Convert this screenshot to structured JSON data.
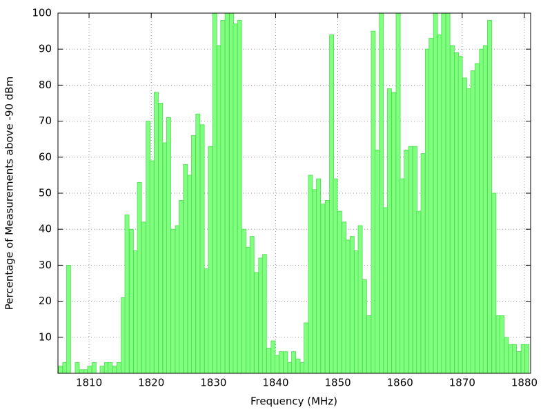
{
  "chart_data": {
    "type": "bar",
    "x_label": "Frequency (MHz)",
    "y_label": "Percentage of Measurements above -90 dBm",
    "x": [
      1805.4,
      1806.1,
      1806.7,
      1807.4,
      1808.1,
      1808.8,
      1809.4,
      1810.1,
      1810.8,
      1811.4,
      1812.1,
      1812.8,
      1813.4,
      1814.1,
      1814.8,
      1815.5,
      1816.1,
      1816.8,
      1817.5,
      1818.1,
      1818.8,
      1819.5,
      1820.1,
      1820.8,
      1821.5,
      1822.2,
      1822.8,
      1823.5,
      1824.2,
      1824.8,
      1825.5,
      1826.2,
      1826.8,
      1827.5,
      1828.2,
      1828.9,
      1829.5,
      1830.2,
      1830.9,
      1831.5,
      1832.2,
      1832.9,
      1833.5,
      1834.2,
      1834.9,
      1835.6,
      1836.2,
      1836.9,
      1837.6,
      1838.2,
      1838.9,
      1839.6,
      1840.2,
      1840.9,
      1841.6,
      1842.3,
      1842.9,
      1843.6,
      1844.3,
      1844.9,
      1845.6,
      1846.3,
      1846.9,
      1847.6,
      1848.3,
      1849.0,
      1849.6,
      1850.3,
      1851.0,
      1851.6,
      1852.3,
      1853.0,
      1853.6,
      1854.3,
      1855.0,
      1855.7,
      1856.3,
      1857.0,
      1857.7,
      1858.3,
      1859.0,
      1859.7,
      1860.3,
      1861.0,
      1861.7,
      1862.4,
      1863.0,
      1863.7,
      1864.4,
      1865.0,
      1865.7,
      1866.4,
      1867.0,
      1867.7,
      1868.4,
      1869.1,
      1869.7,
      1870.4,
      1871.1,
      1871.7,
      1872.4,
      1873.1,
      1873.7,
      1874.4,
      1875.1,
      1875.8,
      1876.4,
      1877.1,
      1877.8,
      1878.4,
      1879.1,
      1879.8,
      1880.4
    ],
    "values": [
      2,
      3,
      30,
      0,
      3,
      1,
      1,
      2,
      3,
      0,
      2,
      3,
      3,
      2,
      3,
      21,
      44,
      40,
      34,
      53,
      42,
      70,
      59,
      78,
      75,
      64,
      71,
      40,
      41,
      48,
      58,
      55,
      66,
      72,
      69,
      29,
      63,
      100,
      91,
      98,
      100,
      100,
      97,
      98,
      40,
      35,
      38,
      28,
      32,
      33,
      7,
      9,
      5,
      6,
      6,
      3,
      6,
      4,
      3,
      14,
      55,
      51,
      54,
      47,
      48,
      94,
      54,
      45,
      42,
      37,
      38,
      34,
      41,
      26,
      16,
      95,
      62,
      100,
      46,
      79,
      78,
      100,
      54,
      62,
      63,
      63,
      45,
      61,
      90,
      93,
      100,
      94,
      100,
      100,
      91,
      89,
      88,
      82,
      79,
      84,
      86,
      90,
      91,
      98,
      50,
      16,
      16,
      10,
      8,
      8,
      6,
      8,
      8
    ],
    "color": "#80ff80",
    "edge_color": "#4cdd4c",
    "xlim": [
      1805,
      1881
    ],
    "ylim": [
      0,
      100
    ],
    "xticks": [
      1810,
      1820,
      1830,
      1840,
      1850,
      1860,
      1870,
      1880
    ],
    "yticks": [
      10,
      20,
      30,
      40,
      50,
      60,
      70,
      80,
      90,
      100
    ],
    "grid": true
  }
}
